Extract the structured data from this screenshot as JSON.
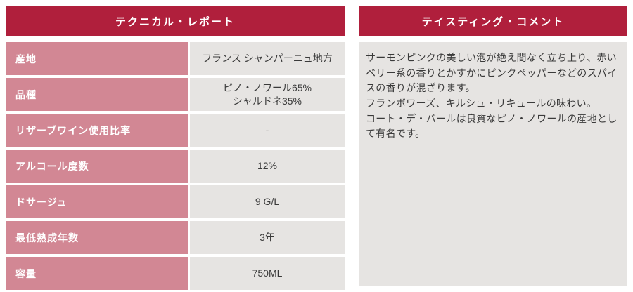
{
  "technical_report": {
    "title": "テクニカル・レポート",
    "rows": [
      {
        "label": "産地",
        "value": "フランス シャンパーニュ地方"
      },
      {
        "label": "品種",
        "value": "ピノ・ノワール65%\nシャルドネ35%"
      },
      {
        "label": "リザーブワイン使用比率",
        "value": "-"
      },
      {
        "label": "アルコール度数",
        "value": "12%"
      },
      {
        "label": "ドサージュ",
        "value": "9 G/L"
      },
      {
        "label": "最低熟成年数",
        "value": "3年"
      },
      {
        "label": "容量",
        "value": "750ML"
      }
    ]
  },
  "tasting_comment": {
    "title": "テイスティング・コメント",
    "text": "サーモンピンクの美しい泡が絶え間なく立ち上り、赤いベリー系の香りとかすかにピンクペッパーなどのスパイスの香りが混ざります。\nフランボワーズ、キルシュ・リキュールの味わい。\nコート・デ・バールは良質なピノ・ノワールの産地として有名です。"
  },
  "colors": {
    "header_bg": "#b01f3c",
    "label_bg": "#d28794",
    "value_bg": "#e6e4e2"
  }
}
